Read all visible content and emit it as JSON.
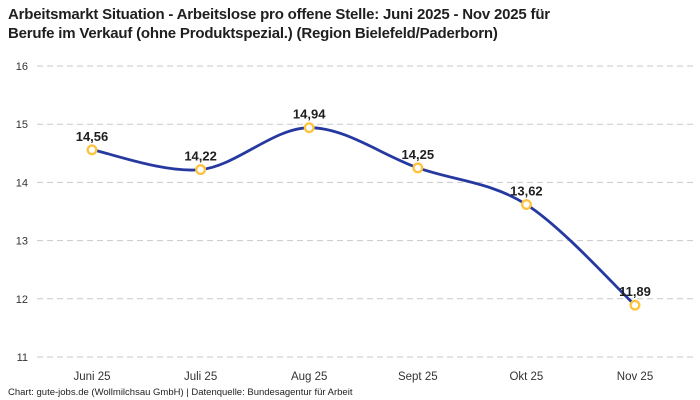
{
  "title": {
    "line1": "Arbeitsmarkt Situation - Arbeitslose pro offene Stelle: Juni 2025 - Nov 2025 für",
    "line2": "Berufe im Verkauf (ohne Produktspezial.) (Region Bielefeld/Paderborn)"
  },
  "footer": {
    "credit": "Chart: gute-jobs.de (Wollmilchsau GmbH) | Datenquelle: Bundesagentur für Arbeit"
  },
  "chart_data": {
    "type": "line",
    "title": "Arbeitsmarkt Situation - Arbeitslose pro offene Stelle: Juni 2025 - Nov 2025 für Berufe im Verkauf (ohne Produktspezial.) (Region Bielefeld/Paderborn)",
    "categories": [
      "Juni 25",
      "Juli 25",
      "Aug 25",
      "Sept 25",
      "Okt 25",
      "Nov 25"
    ],
    "values": [
      14.56,
      14.22,
      14.94,
      14.25,
      13.62,
      11.89
    ],
    "value_labels": [
      "14,56",
      "14,22",
      "14,94",
      "14,25",
      "13,62",
      "11,89"
    ],
    "y_ticks": [
      16,
      15,
      14,
      13,
      12,
      11
    ],
    "ylim": [
      11,
      16
    ],
    "xlabel": "",
    "ylabel": "",
    "grid": "horizontal-dashed",
    "legend": "none",
    "smooth": true,
    "colors": {
      "line": "#2639a0",
      "marker_ring": "#ffc23c",
      "marker_fill": "#ffffff",
      "grid": "#c9c9c9",
      "label_text": "#1f1f1f",
      "tick_text": "#333333"
    }
  }
}
